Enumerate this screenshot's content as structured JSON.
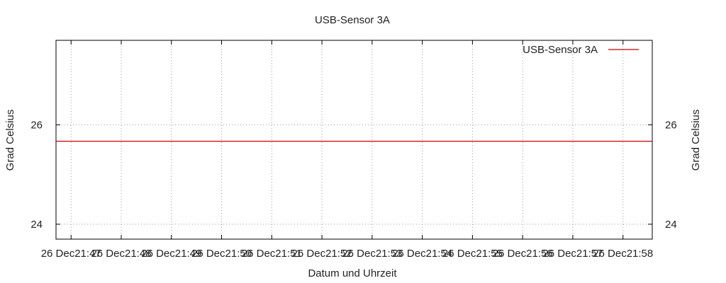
{
  "chart_data": {
    "type": "line",
    "title": "USB-Sensor 3A",
    "xlabel": "Datum und Uhrzeit",
    "ylabel": "Grad Celsius",
    "y2label": "Grad Celsius",
    "x_ticks": [
      "26 Dec21:47",
      "26 Dec21:48",
      "26 Dec21:49",
      "26 Dec21:50",
      "26 Dec21:51",
      "26 Dec21:52",
      "26 Dec21:53",
      "26 Dec21:54",
      "26 Dec21:55",
      "26 Dec21:56",
      "26 Dec21:57",
      "26 Dec21:58"
    ],
    "xlim": [
      "26 Dec 21:46:42",
      "26 Dec 21:58:35"
    ],
    "y_ticks": [
      "24",
      "26"
    ],
    "y2_ticks": [
      "24",
      "26"
    ],
    "ylim": [
      23.7,
      27.7
    ],
    "grid": true,
    "legend_position": "top-right",
    "series": [
      {
        "name": "USB-Sensor 3A",
        "color": "#cc0000",
        "x": [
          "26 Dec 21:46:42",
          "26 Dec 21:58:35"
        ],
        "values": [
          25.67,
          25.67
        ]
      }
    ]
  }
}
